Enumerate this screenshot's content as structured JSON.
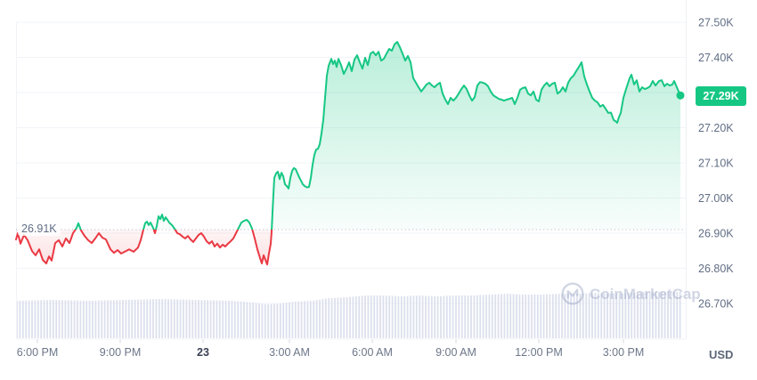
{
  "watermark": {
    "icon": "coinmarketcap-logo-icon",
    "label": "CoinMarketCap"
  },
  "chart_data": {
    "type": "area",
    "description": "24-hour crypto price baseline chart; green above previous close 26.91K, red below, with volume bars",
    "unit": "USD",
    "baseline": {
      "label": "26.91K",
      "price": 26.91
    },
    "current": {
      "label": "27.29K",
      "price": 27.292
    },
    "grid": true,
    "legend": false,
    "y_axis": {
      "side": "right",
      "unit_label": "USD",
      "min": 26.7,
      "max": 27.5,
      "gridline_values": [
        27.5,
        27.4,
        27.3,
        27.2,
        27.1,
        27.0,
        26.9,
        26.8,
        26.7
      ],
      "ticks": [
        {
          "label": "27.50K",
          "value": 27.5
        },
        {
          "label": "27.40K",
          "value": 27.4
        },
        {
          "label": "27.20K",
          "value": 27.2
        },
        {
          "label": "27.10K",
          "value": 27.1
        },
        {
          "label": "27.00K",
          "value": 27.0
        },
        {
          "label": "26.90K",
          "value": 26.9
        },
        {
          "label": "26.80K",
          "value": 26.8
        },
        {
          "label": "26.70K",
          "value": 26.7
        }
      ]
    },
    "x_axis": {
      "labels": [
        {
          "label": "6:00 PM",
          "x": 42
        },
        {
          "label": "9:00 PM",
          "x": 135
        },
        {
          "label": "23",
          "x": 228,
          "emphasis": true
        },
        {
          "label": "3:00 AM",
          "x": 325
        },
        {
          "label": "6:00 AM",
          "x": 418
        },
        {
          "label": "9:00 AM",
          "x": 512
        },
        {
          "label": "12:00 PM",
          "x": 605
        },
        {
          "label": "3:00 PM",
          "x": 700
        }
      ]
    },
    "series": [
      {
        "name": "price",
        "points": [
          [
            18,
            26.882
          ],
          [
            20,
            26.9
          ],
          [
            23,
            26.87
          ],
          [
            27,
            26.895
          ],
          [
            31,
            26.88
          ],
          [
            36,
            26.849
          ],
          [
            40,
            26.837
          ],
          [
            44,
            26.854
          ],
          [
            48,
            26.824
          ],
          [
            52,
            26.814
          ],
          [
            55,
            26.834
          ],
          [
            58,
            26.822
          ],
          [
            62,
            26.872
          ],
          [
            66,
            26.88
          ],
          [
            70,
            26.862
          ],
          [
            74,
            26.885
          ],
          [
            78,
            26.872
          ],
          [
            82,
            26.9
          ],
          [
            86,
            26.915
          ],
          [
            88,
            26.928
          ],
          [
            91,
            26.908
          ],
          [
            95,
            26.892
          ],
          [
            99,
            26.88
          ],
          [
            103,
            26.872
          ],
          [
            107,
            26.885
          ],
          [
            111,
            26.9
          ],
          [
            115,
            26.887
          ],
          [
            119,
            26.882
          ],
          [
            124,
            26.854
          ],
          [
            128,
            26.844
          ],
          [
            132,
            26.852
          ],
          [
            136,
            26.842
          ],
          [
            140,
            26.847
          ],
          [
            145,
            26.854
          ],
          [
            150,
            26.847
          ],
          [
            155,
            26.859
          ],
          [
            158,
            26.88
          ],
          [
            161,
            26.91
          ],
          [
            163,
            26.928
          ],
          [
            165,
            26.933
          ],
          [
            167,
            26.923
          ],
          [
            169,
            26.93
          ],
          [
            172,
            26.915
          ],
          [
            174,
            26.9
          ],
          [
            176,
            26.92
          ],
          [
            178,
            26.948
          ],
          [
            180,
            26.94
          ],
          [
            182,
            26.953
          ],
          [
            184,
            26.935
          ],
          [
            186,
            26.945
          ],
          [
            188,
            26.938
          ],
          [
            190,
            26.93
          ],
          [
            193,
            26.923
          ],
          [
            196,
            26.913
          ],
          [
            199,
            26.9
          ],
          [
            202,
            26.897
          ],
          [
            205,
            26.89
          ],
          [
            208,
            26.885
          ],
          [
            211,
            26.892
          ],
          [
            214,
            26.882
          ],
          [
            217,
            26.875
          ],
          [
            220,
            26.885
          ],
          [
            223,
            26.895
          ],
          [
            226,
            26.9
          ],
          [
            229,
            26.89
          ],
          [
            232,
            26.877
          ],
          [
            235,
            26.87
          ],
          [
            238,
            26.877
          ],
          [
            241,
            26.862
          ],
          [
            244,
            26.87
          ],
          [
            247,
            26.859
          ],
          [
            250,
            26.867
          ],
          [
            253,
            26.862
          ],
          [
            256,
            26.87
          ],
          [
            259,
            26.877
          ],
          [
            262,
            26.885
          ],
          [
            265,
            26.9
          ],
          [
            268,
            26.915
          ],
          [
            271,
            26.93
          ],
          [
            274,
            26.935
          ],
          [
            277,
            26.938
          ],
          [
            280,
            26.93
          ],
          [
            283,
            26.913
          ],
          [
            286,
            26.885
          ],
          [
            289,
            26.854
          ],
          [
            292,
            26.829
          ],
          [
            294,
            26.814
          ],
          [
            296,
            26.837
          ],
          [
            298,
            26.824
          ],
          [
            300,
            26.811
          ],
          [
            302,
            26.842
          ],
          [
            304,
            26.87
          ],
          [
            305,
            26.905
          ],
          [
            306,
            26.96
          ],
          [
            307,
            27.01
          ],
          [
            308,
            27.057
          ],
          [
            310,
            27.07
          ],
          [
            312,
            27.075
          ],
          [
            314,
            27.054
          ],
          [
            316,
            27.072
          ],
          [
            318,
            27.062
          ],
          [
            320,
            27.039
          ],
          [
            322,
            27.034
          ],
          [
            324,
            27.027
          ],
          [
            326,
            27.057
          ],
          [
            328,
            27.077
          ],
          [
            330,
            27.085
          ],
          [
            332,
            27.082
          ],
          [
            334,
            27.07
          ],
          [
            336,
            27.059
          ],
          [
            338,
            27.049
          ],
          [
            340,
            27.039
          ],
          [
            342,
            27.034
          ],
          [
            345,
            27.03
          ],
          [
            347,
            27.032
          ],
          [
            349,
            27.057
          ],
          [
            351,
            27.095
          ],
          [
            353,
            27.123
          ],
          [
            355,
            27.138
          ],
          [
            357,
            27.14
          ],
          [
            359,
            27.153
          ],
          [
            361,
            27.184
          ],
          [
            363,
            27.222
          ],
          [
            365,
            27.285
          ],
          [
            367,
            27.348
          ],
          [
            369,
            27.376
          ],
          [
            372,
            27.396
          ],
          [
            374,
            27.381
          ],
          [
            376,
            27.391
          ],
          [
            378,
            27.373
          ],
          [
            380,
            27.396
          ],
          [
            383,
            27.378
          ],
          [
            386,
            27.353
          ],
          [
            389,
            27.368
          ],
          [
            392,
            27.386
          ],
          [
            395,
            27.361
          ],
          [
            398,
            27.394
          ],
          [
            401,
            27.406
          ],
          [
            404,
            27.386
          ],
          [
            407,
            27.368
          ],
          [
            410,
            27.399
          ],
          [
            413,
            27.378
          ],
          [
            416,
            27.411
          ],
          [
            419,
            27.416
          ],
          [
            422,
            27.406
          ],
          [
            425,
            27.416
          ],
          [
            428,
            27.391
          ],
          [
            431,
            27.396
          ],
          [
            434,
            27.411
          ],
          [
            437,
            27.424
          ],
          [
            440,
            27.419
          ],
          [
            443,
            27.437
          ],
          [
            446,
            27.444
          ],
          [
            449,
            27.429
          ],
          [
            452,
            27.411
          ],
          [
            455,
            27.391
          ],
          [
            458,
            27.404
          ],
          [
            461,
            27.386
          ],
          [
            464,
            27.341
          ],
          [
            467,
            27.328
          ],
          [
            470,
            27.315
          ],
          [
            473,
            27.303
          ],
          [
            476,
            27.313
          ],
          [
            479,
            27.323
          ],
          [
            482,
            27.328
          ],
          [
            485,
            27.32
          ],
          [
            488,
            27.315
          ],
          [
            491,
            27.323
          ],
          [
            494,
            27.328
          ],
          [
            497,
            27.297
          ],
          [
            500,
            27.28
          ],
          [
            503,
            27.267
          ],
          [
            506,
            27.285
          ],
          [
            509,
            27.277
          ],
          [
            512,
            27.285
          ],
          [
            515,
            27.297
          ],
          [
            518,
            27.31
          ],
          [
            521,
            27.32
          ],
          [
            524,
            27.31
          ],
          [
            527,
            27.292
          ],
          [
            530,
            27.277
          ],
          [
            533,
            27.287
          ],
          [
            536,
            27.32
          ],
          [
            539,
            27.33
          ],
          [
            542,
            27.328
          ],
          [
            545,
            27.325
          ],
          [
            548,
            27.318
          ],
          [
            551,
            27.303
          ],
          [
            554,
            27.292
          ],
          [
            557,
            27.287
          ],
          [
            560,
            27.282
          ],
          [
            563,
            27.28
          ],
          [
            566,
            27.277
          ],
          [
            569,
            27.28
          ],
          [
            572,
            27.282
          ],
          [
            575,
            27.285
          ],
          [
            578,
            27.267
          ],
          [
            581,
            27.285
          ],
          [
            584,
            27.308
          ],
          [
            587,
            27.313
          ],
          [
            590,
            27.315
          ],
          [
            593,
            27.297
          ],
          [
            596,
            27.292
          ],
          [
            599,
            27.303
          ],
          [
            602,
            27.28
          ],
          [
            605,
            27.275
          ],
          [
            608,
            27.308
          ],
          [
            611,
            27.32
          ],
          [
            614,
            27.328
          ],
          [
            617,
            27.318
          ],
          [
            620,
            27.325
          ],
          [
            623,
            27.328
          ],
          [
            626,
            27.297
          ],
          [
            629,
            27.303
          ],
          [
            632,
            27.315
          ],
          [
            635,
            27.303
          ],
          [
            638,
            27.328
          ],
          [
            641,
            27.341
          ],
          [
            644,
            27.348
          ],
          [
            647,
            27.361
          ],
          [
            650,
            27.373
          ],
          [
            653,
            27.386
          ],
          [
            656,
            27.346
          ],
          [
            659,
            27.323
          ],
          [
            662,
            27.303
          ],
          [
            665,
            27.285
          ],
          [
            668,
            27.277
          ],
          [
            671,
            27.272
          ],
          [
            674,
            27.26
          ],
          [
            677,
            27.265
          ],
          [
            680,
            27.254
          ],
          [
            683,
            27.242
          ],
          [
            686,
            27.243
          ],
          [
            689,
            27.222
          ],
          [
            692,
            27.217
          ],
          [
            693,
            27.214
          ],
          [
            695,
            27.23
          ],
          [
            697,
            27.242
          ],
          [
            700,
            27.285
          ],
          [
            703,
            27.31
          ],
          [
            707,
            27.341
          ],
          [
            709,
            27.351
          ],
          [
            712,
            27.323
          ],
          [
            715,
            27.335
          ],
          [
            718,
            27.303
          ],
          [
            721,
            27.315
          ],
          [
            724,
            27.31
          ],
          [
            727,
            27.313
          ],
          [
            730,
            27.318
          ],
          [
            733,
            27.333
          ],
          [
            736,
            27.32
          ],
          [
            740,
            27.333
          ],
          [
            743,
            27.335
          ],
          [
            746,
            27.318
          ],
          [
            749,
            27.325
          ],
          [
            752,
            27.32
          ],
          [
            755,
            27.323
          ],
          [
            757,
            27.333
          ],
          [
            760,
            27.315
          ],
          [
            762,
            27.303
          ],
          [
            764,
            27.292
          ]
        ]
      }
    ],
    "volume_profile": [
      [
        18,
        42
      ],
      [
        60,
        43
      ],
      [
        100,
        42
      ],
      [
        140,
        43
      ],
      [
        180,
        44
      ],
      [
        220,
        43
      ],
      [
        260,
        42
      ],
      [
        285,
        40
      ],
      [
        300,
        38
      ],
      [
        315,
        39
      ],
      [
        330,
        41
      ],
      [
        350,
        42
      ],
      [
        370,
        45
      ],
      [
        390,
        46
      ],
      [
        410,
        48
      ],
      [
        430,
        48
      ],
      [
        450,
        47
      ],
      [
        470,
        48
      ],
      [
        490,
        47
      ],
      [
        510,
        48
      ],
      [
        530,
        48
      ],
      [
        550,
        49
      ],
      [
        570,
        50
      ],
      [
        590,
        49
      ],
      [
        610,
        49
      ],
      [
        630,
        50
      ],
      [
        650,
        50
      ],
      [
        670,
        51
      ],
      [
        690,
        50
      ],
      [
        710,
        51
      ],
      [
        730,
        52
      ],
      [
        750,
        52
      ],
      [
        765,
        52
      ]
    ],
    "colors": {
      "up": "#16c784",
      "down": "#ea3943",
      "volume_bar": "#dce0ed",
      "grid": "#f2f4f8",
      "axis_text": "#616e85",
      "baseline_dotted": "#a9b2c5",
      "badge_text": "#ffffff",
      "watermark": "#9aa5c4",
      "day_label": "#3a4254"
    }
  }
}
